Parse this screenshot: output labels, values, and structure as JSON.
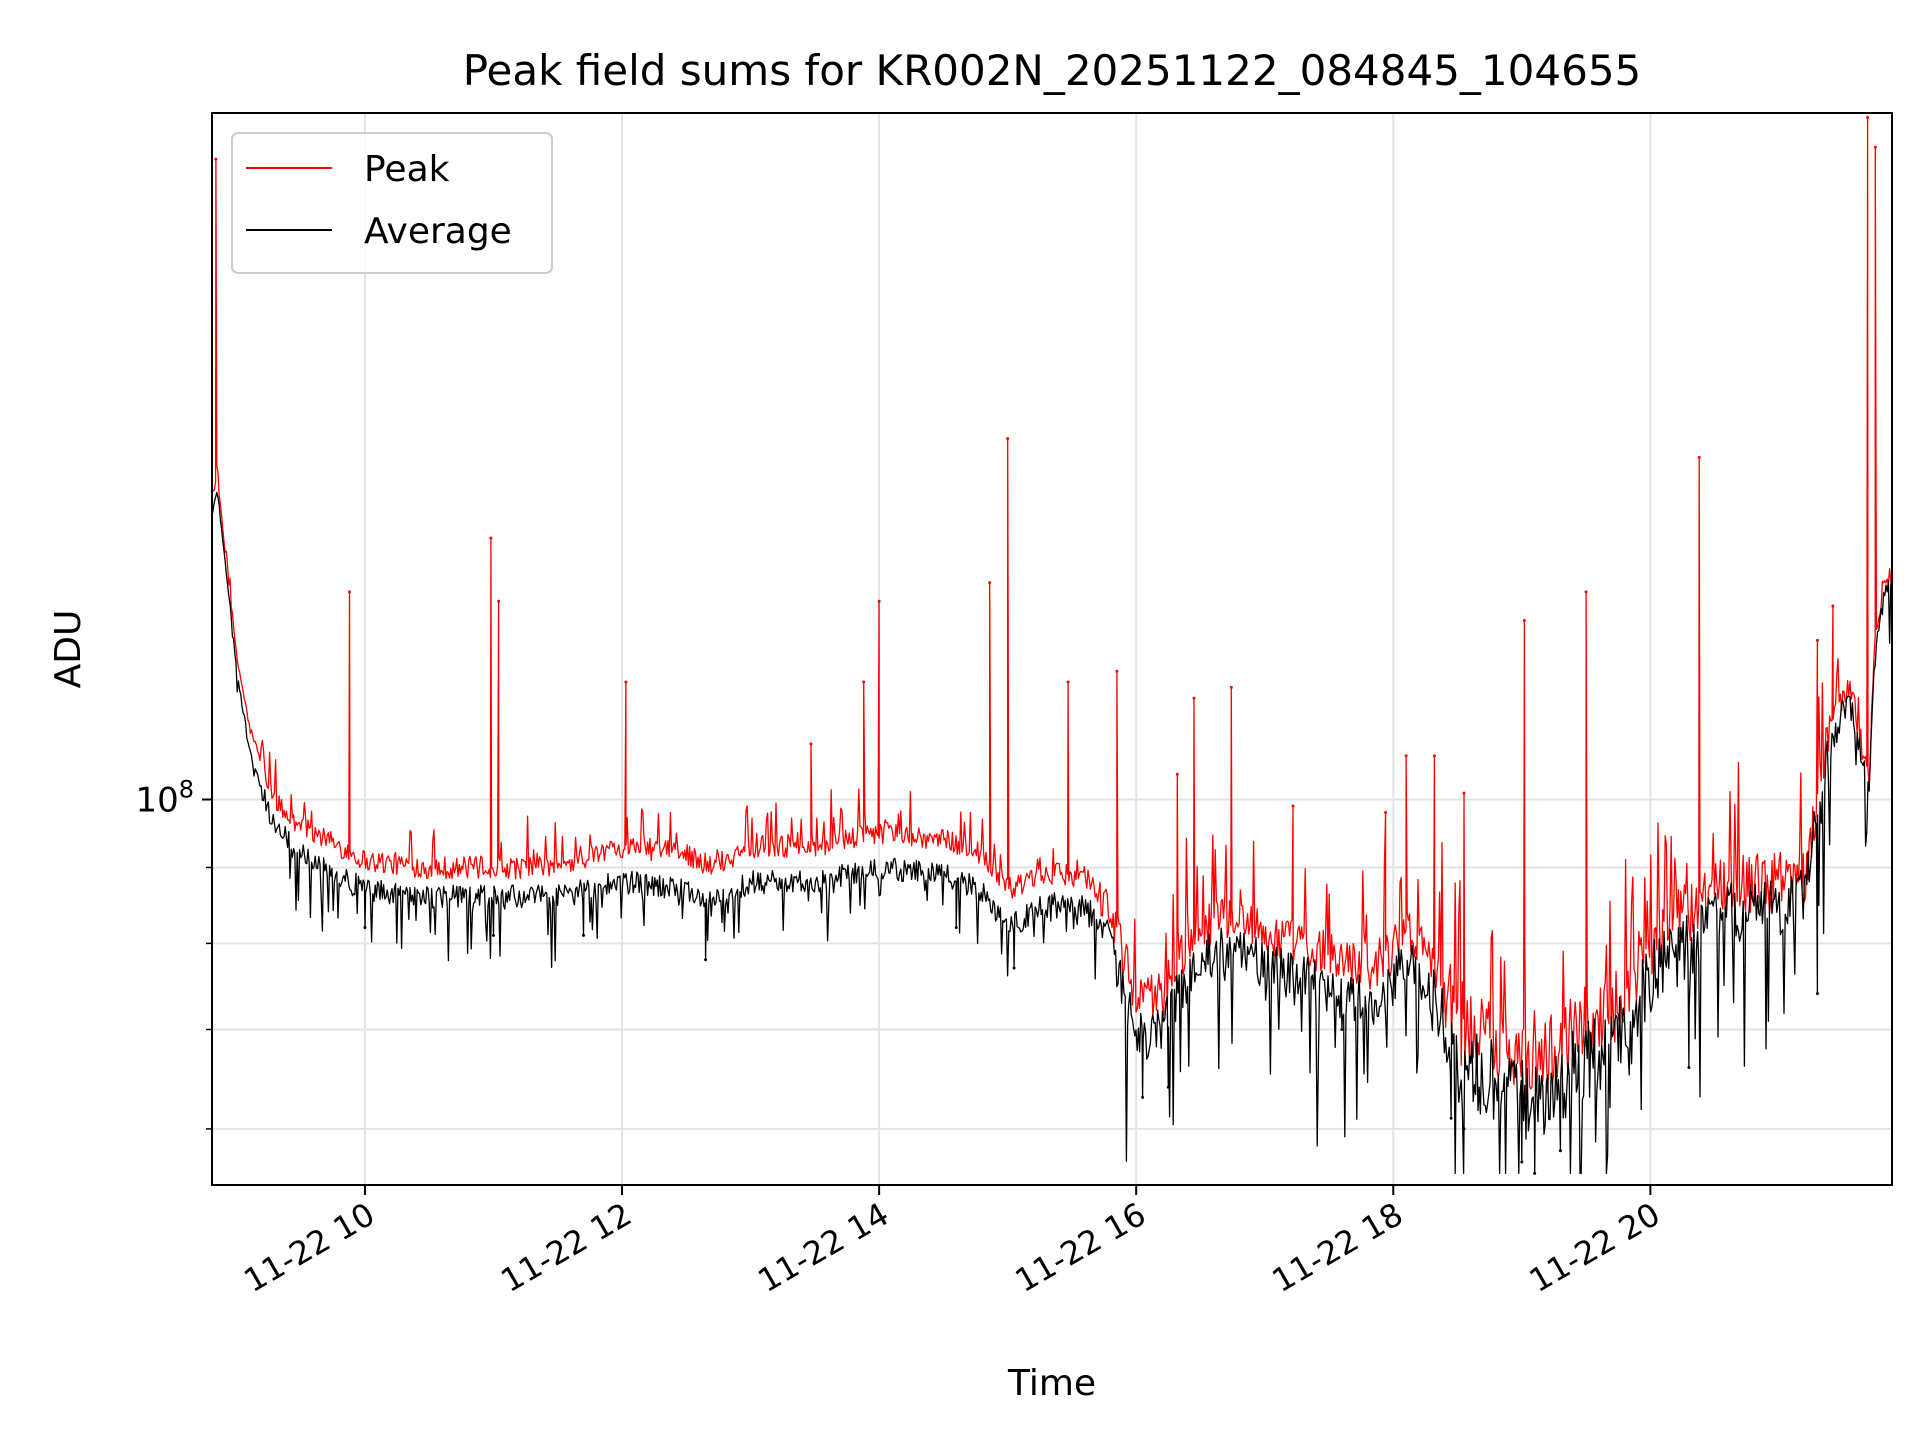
{
  "chart_data": {
    "type": "line",
    "title": "Peak field sums for KR002N_20251122_084845_104655",
    "xlabel": "Time",
    "ylabel": "ADU",
    "y_scale": "log",
    "y_tick_label": "10",
    "y_tick_exponent": "8",
    "y_major_tick_value": 100000000,
    "y_minor_grid_values": [
      60000000,
      70000000,
      80000000,
      90000000
    ],
    "ylim": [
      55000000,
      290000000
    ],
    "x_unit": "hours since 11-22 00:00",
    "xlim": [
      8.81,
      21.88
    ],
    "x_ticks": [
      {
        "value": 10,
        "label": "11-22 10"
      },
      {
        "value": 12,
        "label": "11-22 12"
      },
      {
        "value": 14,
        "label": "11-22 14"
      },
      {
        "value": 16,
        "label": "11-22 16"
      },
      {
        "value": 18,
        "label": "11-22 18"
      },
      {
        "value": 20,
        "label": "11-22 20"
      }
    ],
    "grid": true,
    "legend_position": "top-left",
    "series": [
      {
        "name": "Peak",
        "color": "#ff0000",
        "baseline": {
          "x": [
            8.81,
            8.85,
            8.9,
            9.0,
            9.1,
            9.25,
            9.4,
            9.7,
            10.0,
            10.5,
            11.0,
            11.5,
            12.0,
            12.5,
            12.7,
            13.0,
            13.5,
            14.0,
            14.5,
            14.8,
            15.0,
            15.3,
            15.6,
            15.8,
            16.0,
            16.2,
            16.4,
            16.6,
            16.8,
            17.0,
            17.3,
            17.6,
            17.9,
            18.1,
            18.3,
            18.5,
            18.8,
            19.1,
            19.4,
            19.7,
            20.0,
            20.3,
            20.6,
            21.0,
            21.2,
            21.4,
            21.55,
            21.7,
            21.75,
            21.8,
            21.88
          ],
          "y": [
            160,
            165,
            150,
            125,
            112,
            102,
            97,
            94,
            91,
            90,
            90,
            90,
            93,
            92,
            90,
            93,
            93,
            95,
            94,
            92,
            87,
            89,
            89,
            84,
            73,
            74,
            80,
            83,
            84,
            81,
            80,
            78,
            77,
            82,
            78,
            70,
            69,
            66,
            70,
            72,
            80,
            84,
            88,
            88,
            89,
            112,
            120,
            102,
            128,
            138,
            142
          ]
        },
        "spikes": [
          {
            "x": 8.84,
            "y": 270
          },
          {
            "x": 9.88,
            "y": 138
          },
          {
            "x": 10.98,
            "y": 150
          },
          {
            "x": 11.04,
            "y": 136
          },
          {
            "x": 12.03,
            "y": 120
          },
          {
            "x": 13.47,
            "y": 109
          },
          {
            "x": 13.88,
            "y": 120
          },
          {
            "x": 14.0,
            "y": 136
          },
          {
            "x": 14.86,
            "y": 140
          },
          {
            "x": 15.0,
            "y": 175
          },
          {
            "x": 15.47,
            "y": 120
          },
          {
            "x": 15.85,
            "y": 122
          },
          {
            "x": 16.32,
            "y": 104
          },
          {
            "x": 16.45,
            "y": 117
          },
          {
            "x": 16.74,
            "y": 119
          },
          {
            "x": 17.22,
            "y": 99
          },
          {
            "x": 17.94,
            "y": 98
          },
          {
            "x": 18.1,
            "y": 107
          },
          {
            "x": 18.32,
            "y": 107
          },
          {
            "x": 18.55,
            "y": 101
          },
          {
            "x": 19.02,
            "y": 132
          },
          {
            "x": 19.5,
            "y": 138
          },
          {
            "x": 20.38,
            "y": 170
          },
          {
            "x": 21.3,
            "y": 128
          },
          {
            "x": 21.42,
            "y": 135
          },
          {
            "x": 21.69,
            "y": 288
          },
          {
            "x": 21.75,
            "y": 275
          }
        ]
      },
      {
        "name": "Average",
        "color": "#000000",
        "baseline": {
          "x": [
            8.81,
            8.85,
            8.9,
            9.0,
            9.1,
            9.25,
            9.4,
            9.7,
            10.0,
            10.5,
            11.0,
            11.5,
            12.0,
            12.5,
            12.7,
            13.0,
            13.5,
            14.0,
            14.5,
            14.8,
            15.0,
            15.3,
            15.6,
            15.8,
            16.0,
            16.2,
            16.4,
            16.6,
            16.8,
            17.0,
            17.3,
            17.6,
            17.9,
            18.1,
            18.3,
            18.5,
            18.8,
            19.1,
            19.4,
            19.7,
            20.0,
            20.3,
            20.6,
            21.0,
            21.2,
            21.4,
            21.55,
            21.7,
            21.75,
            21.8,
            21.88
          ],
          "y": [
            155,
            162,
            148,
            122,
            108,
            98,
            94,
            90,
            87,
            86,
            86,
            86,
            88,
            87,
            85,
            88,
            88,
            90,
            89,
            87,
            82,
            85,
            85,
            80,
            69,
            70,
            76,
            79,
            80,
            77,
            76,
            74,
            73,
            78,
            74,
            66,
            65,
            62,
            66,
            68,
            76,
            80,
            84,
            84,
            86,
            108,
            118,
            100,
            125,
            135,
            140
          ]
        },
        "dips": [
          {
            "x": 10.0,
            "y": 82
          },
          {
            "x": 11.0,
            "y": 81
          },
          {
            "x": 11.7,
            "y": 81
          },
          {
            "x": 12.65,
            "y": 78
          },
          {
            "x": 14.6,
            "y": 82
          },
          {
            "x": 15.05,
            "y": 77
          },
          {
            "x": 16.05,
            "y": 63
          },
          {
            "x": 16.25,
            "y": 64
          },
          {
            "x": 17.6,
            "y": 70
          },
          {
            "x": 18.45,
            "y": 61
          },
          {
            "x": 18.55,
            "y": 60
          },
          {
            "x": 19.0,
            "y": 57
          },
          {
            "x": 19.1,
            "y": 56
          },
          {
            "x": 19.3,
            "y": 58
          },
          {
            "x": 20.3,
            "y": 66
          },
          {
            "x": 21.3,
            "y": 74
          }
        ]
      }
    ]
  }
}
